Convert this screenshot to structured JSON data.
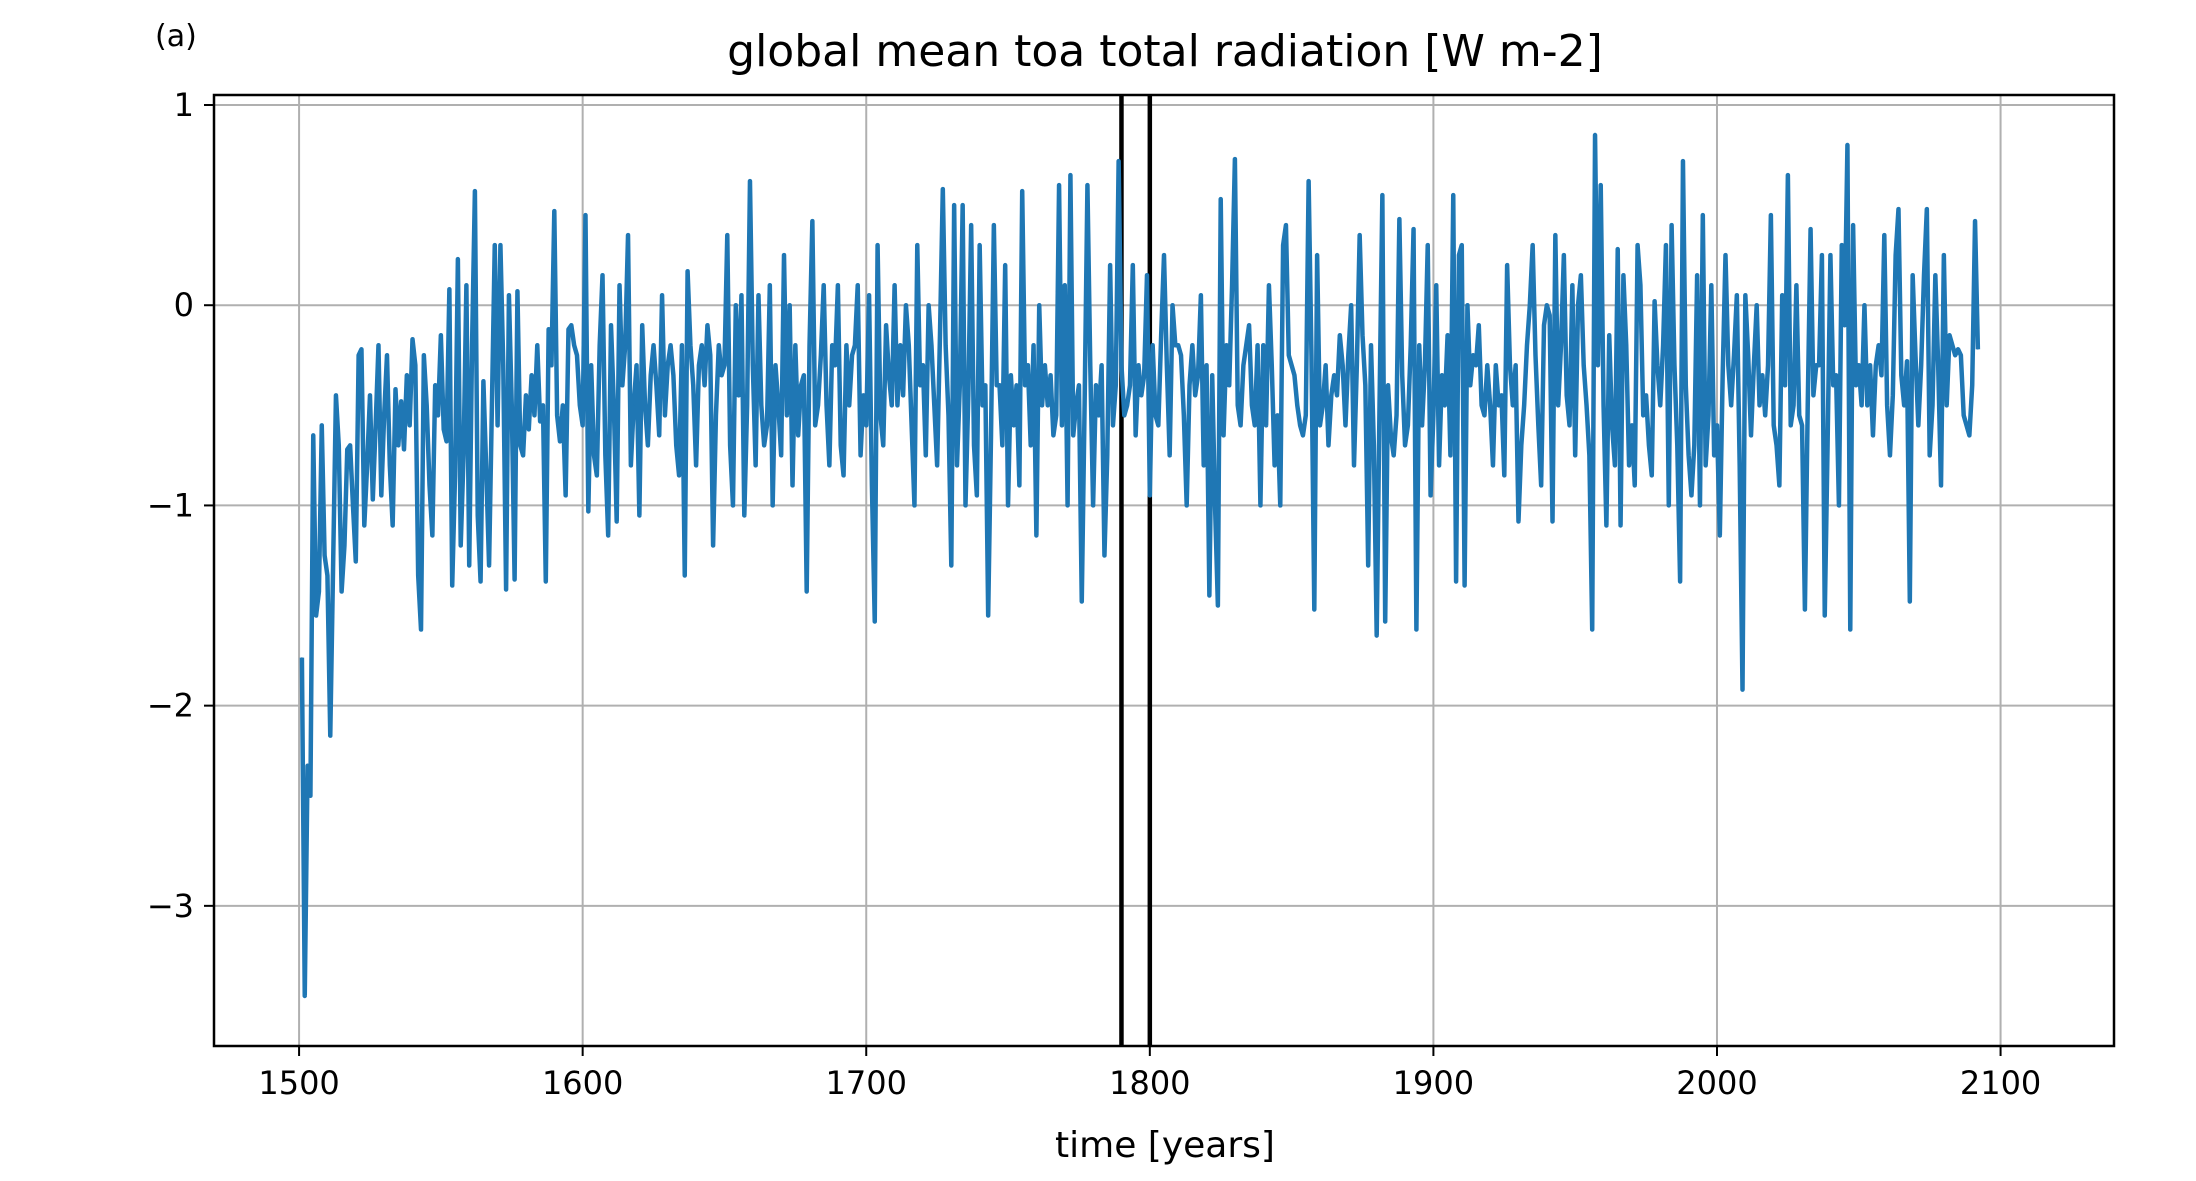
{
  "chart_data": {
    "type": "line",
    "panel_label": "(a)",
    "title": "global mean toa total radiation [W m-2]",
    "xlabel": "time [years]",
    "ylabel": "",
    "xlim": [
      1470,
      2140
    ],
    "ylim": [
      -3.7,
      1.05
    ],
    "xticks": [
      1500,
      1600,
      1700,
      1800,
      1900,
      2000,
      2100
    ],
    "yticks": [
      1,
      0,
      -1,
      -2,
      -3
    ],
    "ytick_labels": [
      "1",
      "0",
      "−1",
      "−2",
      "−3"
    ],
    "grid": true,
    "vertical_lines": [
      1790,
      1800
    ],
    "series": [
      {
        "color": "#1f77b4",
        "x_start": 1501,
        "x_step": 1,
        "values": [
          -1.76,
          -3.45,
          -2.3,
          -2.45,
          -0.65,
          -1.55,
          -1.43,
          -0.6,
          -1.25,
          -1.35,
          -2.15,
          -1.3,
          -0.45,
          -0.7,
          -1.43,
          -1.2,
          -0.72,
          -0.7,
          -1.0,
          -1.28,
          -0.25,
          -0.22,
          -1.1,
          -0.8,
          -0.45,
          -0.97,
          -0.6,
          -0.2,
          -0.95,
          -0.55,
          -0.25,
          -0.8,
          -1.1,
          -0.42,
          -0.7,
          -0.48,
          -0.72,
          -0.35,
          -0.6,
          -0.17,
          -0.3,
          -1.35,
          -1.62,
          -0.25,
          -0.5,
          -0.9,
          -1.15,
          -0.4,
          -0.55,
          -0.15,
          -0.62,
          -0.68,
          0.08,
          -1.4,
          -0.85,
          0.23,
          -1.2,
          -0.75,
          0.1,
          -1.3,
          -0.2,
          0.57,
          -1.05,
          -1.38,
          -0.38,
          -0.82,
          -1.3,
          -0.5,
          0.3,
          -0.6,
          0.3,
          -0.3,
          -1.42,
          0.05,
          -0.5,
          -1.37,
          0.07,
          -0.7,
          -0.75,
          -0.45,
          -0.62,
          -0.35,
          -0.55,
          -0.2,
          -0.58,
          -0.5,
          -1.38,
          -0.12,
          -0.3,
          0.47,
          -0.55,
          -0.68,
          -0.5,
          -0.95,
          -0.12,
          -0.1,
          -0.2,
          -0.25,
          -0.5,
          -0.6,
          0.45,
          -1.03,
          -0.3,
          -0.75,
          -0.85,
          -0.2,
          0.15,
          -0.75,
          -1.15,
          -0.1,
          -0.5,
          -1.08,
          0.1,
          -0.4,
          -0.2,
          0.35,
          -0.8,
          -0.5,
          -0.3,
          -1.05,
          -0.1,
          -0.5,
          -0.7,
          -0.35,
          -0.2,
          -0.4,
          -0.65,
          0.05,
          -0.55,
          -0.3,
          -0.2,
          -0.35,
          -0.7,
          -0.85,
          -0.2,
          -1.35,
          0.17,
          -0.2,
          -0.4,
          -0.8,
          -0.3,
          -0.2,
          -0.4,
          -0.1,
          -0.25,
          -1.2,
          -0.55,
          -0.2,
          -0.35,
          -0.3,
          0.35,
          -0.7,
          -1.0,
          0.0,
          -0.45,
          0.05,
          -1.05,
          -0.5,
          0.62,
          -0.3,
          -0.8,
          0.05,
          -0.5,
          -0.7,
          -0.6,
          0.1,
          -1.0,
          -0.3,
          -0.5,
          -0.75,
          0.25,
          -0.55,
          0.0,
          -0.9,
          -0.2,
          -0.65,
          -0.4,
          -0.35,
          -1.43,
          -0.2,
          0.42,
          -0.6,
          -0.5,
          -0.25,
          0.1,
          -0.5,
          -0.8,
          -0.2,
          -0.3,
          0.1,
          -0.7,
          -0.85,
          -0.2,
          -0.5,
          -0.25,
          -0.2,
          0.1,
          -0.75,
          -0.45,
          -0.6,
          0.05,
          -0.9,
          -1.58,
          0.3,
          -0.55,
          -0.7,
          -0.1,
          -0.35,
          -0.5,
          0.1,
          -0.5,
          -0.2,
          -0.45,
          0.0,
          -0.2,
          -0.6,
          -1.0,
          0.3,
          -0.4,
          -0.3,
          -0.75,
          0.0,
          -0.2,
          -0.5,
          -0.8,
          -0.15,
          0.58,
          -0.2,
          -0.55,
          -1.3,
          0.5,
          -0.8,
          -0.4,
          0.5,
          -1.0,
          -0.45,
          0.4,
          -0.7,
          -0.95,
          0.3,
          -0.5,
          -0.4,
          -1.55,
          -0.65,
          0.4,
          -0.4,
          -0.4,
          -0.7,
          0.2,
          -1.0,
          -0.35,
          -0.6,
          -0.4,
          -0.9,
          0.57,
          -0.4,
          -0.3,
          -0.7,
          -0.2,
          -1.15,
          0.0,
          -0.5,
          -0.3,
          -0.5,
          -0.35,
          -0.65,
          -0.55,
          0.6,
          -0.6,
          0.1,
          -1.0,
          0.65,
          -0.65,
          -0.5,
          -0.4,
          -1.48,
          -0.5,
          0.6,
          -0.3,
          -1.0,
          -0.4,
          -0.55,
          -0.3,
          -1.25,
          -0.75,
          0.2,
          -0.6,
          -0.4,
          0.72,
          -0.3,
          -0.55,
          -0.5,
          -0.4,
          0.2,
          -0.65,
          -0.3,
          -0.45,
          -0.35,
          0.15,
          -0.95,
          -0.2,
          -0.55,
          -0.6,
          -0.15,
          0.25,
          -0.3,
          -0.75,
          0.0,
          -0.2,
          -0.2,
          -0.25,
          -0.55,
          -1.0,
          -0.4,
          -0.2,
          -0.45,
          -0.35,
          0.05,
          -0.8,
          -0.3,
          -1.45,
          -0.35,
          -1.0,
          -1.5,
          0.53,
          -0.65,
          -0.2,
          -0.4,
          0.1,
          0.73,
          -0.5,
          -0.6,
          -0.3,
          -0.2,
          -0.1,
          -0.5,
          -0.6,
          -0.2,
          -1.0,
          -0.2,
          -0.6,
          0.1,
          -0.3,
          -0.8,
          -0.55,
          -1.0,
          0.3,
          0.4,
          -0.25,
          -0.3,
          -0.35,
          -0.5,
          -0.6,
          -0.65,
          -0.55,
          0.62,
          -0.25,
          -1.52,
          0.25,
          -0.6,
          -0.5,
          -0.3,
          -0.7,
          -0.45,
          -0.35,
          -0.45,
          -0.15,
          -0.3,
          -0.6,
          -0.25,
          0.0,
          -0.8,
          -0.3,
          0.35,
          -0.15,
          -0.4,
          -1.3,
          -0.2,
          -0.7,
          -1.65,
          -0.5,
          0.55,
          -1.58,
          -0.4,
          -0.65,
          -0.75,
          -0.55,
          0.43,
          -0.35,
          -0.7,
          -0.6,
          -0.2,
          0.38,
          -1.62,
          -0.2,
          -0.6,
          -0.3,
          0.3,
          -0.95,
          -0.55,
          0.1,
          -0.8,
          -0.35,
          -0.5,
          -0.15,
          -0.75,
          0.55,
          -1.38,
          0.25,
          0.3,
          -1.4,
          0.0,
          -0.4,
          -0.25,
          -0.3,
          -0.1,
          -0.5,
          -0.55,
          -0.3,
          -0.5,
          -0.8,
          -0.3,
          -0.5,
          -0.45,
          -0.85,
          0.2,
          -0.3,
          -0.5,
          -0.3,
          -1.08,
          -0.7,
          -0.5,
          -0.2,
          0.0,
          0.3,
          -0.25,
          -0.6,
          -0.9,
          -0.1,
          0.0,
          -0.05,
          -1.08,
          0.35,
          -0.5,
          -0.2,
          0.25,
          -0.45,
          -0.6,
          0.1,
          -0.75,
          0.0,
          0.15,
          -0.3,
          -0.5,
          -0.75,
          -1.62,
          0.85,
          -0.3,
          0.6,
          -0.5,
          -1.1,
          -0.15,
          -0.6,
          -0.8,
          0.28,
          -1.1,
          0.15,
          -0.2,
          -0.8,
          -0.6,
          -0.9,
          0.3,
          0.1,
          -0.55,
          -0.45,
          -0.7,
          -0.85,
          0.02,
          -0.3,
          -0.5,
          -0.2,
          0.3,
          -1.0,
          0.4,
          -0.3,
          -0.7,
          -1.38,
          0.72,
          -0.4,
          -0.75,
          -0.95,
          -0.7,
          0.15,
          -1.0,
          0.45,
          -0.8,
          -0.55,
          0.1,
          -0.75,
          -0.6,
          -1.15,
          -0.35,
          0.25,
          -0.3,
          -0.5,
          -0.25,
          0.05,
          -0.8,
          -1.92,
          0.05,
          -0.25,
          -0.65,
          -0.3,
          0.0,
          -0.5,
          -0.35,
          -0.55,
          -0.3,
          0.45,
          -0.6,
          -0.7,
          -0.9,
          0.05,
          -0.4,
          0.65,
          -0.6,
          -0.5,
          0.1,
          -0.55,
          -0.6,
          -1.52,
          -0.5,
          0.38,
          -0.45,
          -0.3,
          -0.3,
          0.25,
          -1.55,
          -0.7,
          0.25,
          -0.4,
          -0.35,
          -1.0,
          0.3,
          -0.1,
          0.8,
          -1.62,
          0.4,
          -0.4,
          -0.3,
          -0.5,
          0.0,
          -0.5,
          -0.3,
          -0.65,
          -0.3,
          -0.2,
          -0.35,
          0.35,
          -0.5,
          -0.75,
          -0.45,
          0.25,
          0.48,
          -0.35,
          -0.5,
          -0.28,
          -1.48,
          0.15,
          -0.25,
          -0.6,
          -0.3,
          0.15,
          0.48,
          -0.75,
          -0.5,
          0.15,
          -0.3,
          -0.9,
          0.25,
          -0.5,
          -0.15,
          -0.2,
          -0.25,
          -0.22,
          -0.25,
          -0.55,
          -0.6,
          -0.65,
          -0.4,
          0.42,
          -0.22
        ]
      }
    ]
  }
}
